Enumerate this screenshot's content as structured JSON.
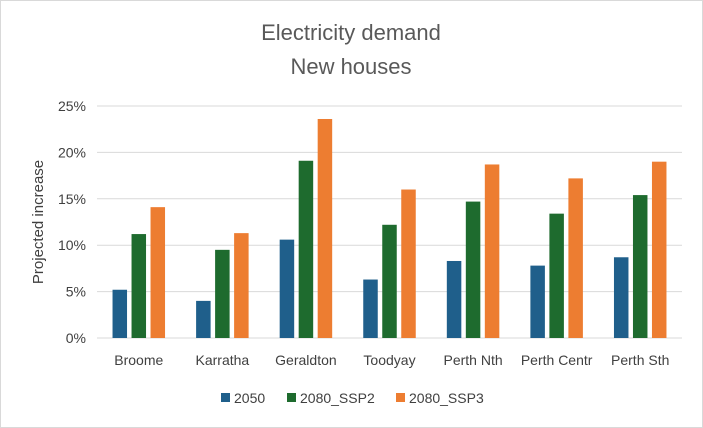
{
  "chart_data": {
    "type": "bar",
    "title": "Electricity demand",
    "subtitle": "New houses",
    "xlabel": "",
    "ylabel": "Projected increase",
    "ylim": [
      0,
      25
    ],
    "yticks": [
      0,
      5,
      10,
      15,
      20,
      25
    ],
    "ytick_labels": [
      "0%",
      "5%",
      "10%",
      "15%",
      "20%",
      "25%"
    ],
    "grid": true,
    "legend_position": "bottom",
    "categories": [
      "Broome",
      "Karratha",
      "Geraldton",
      "Toodyay",
      "Perth Nth",
      "Perth Centr",
      "Perth Sth"
    ],
    "series": [
      {
        "name": "2050",
        "color": "#1f5f8b",
        "values": [
          5.2,
          4.0,
          10.6,
          6.3,
          8.3,
          7.8,
          8.7
        ]
      },
      {
        "name": "2080_SSP2",
        "color": "#1e6b2e",
        "values": [
          11.2,
          9.5,
          19.1,
          12.2,
          14.7,
          13.4,
          15.4
        ]
      },
      {
        "name": "2080_SSP3",
        "color": "#ed7d31",
        "values": [
          14.1,
          11.3,
          23.6,
          16.0,
          18.7,
          17.2,
          19.0
        ]
      }
    ]
  }
}
